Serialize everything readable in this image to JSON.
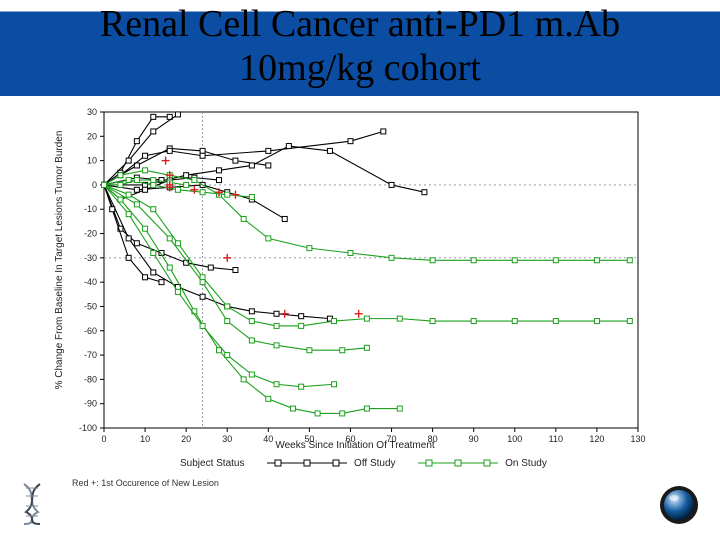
{
  "title": {
    "line1": "Renal Cell Cancer anti-PD1 m.Ab",
    "line2": "10mg/kg cohort",
    "fontsize": 38,
    "color_top": "#000000",
    "bar_color": "#0b4da2"
  },
  "chart": {
    "type": "line",
    "xlim": [
      0,
      130
    ],
    "ylim": [
      -100,
      30
    ],
    "xtick_step": 10,
    "ytick_step": 10,
    "xlabel": "Weeks Since Initiation Of Treatment",
    "ylabel": "% Change From Baseline In Target Lesions Tumor Burden",
    "axis_color": "#000000",
    "bg_color": "#ffffff",
    "grid_color": "#9aa6b2",
    "grid_dash": "3 3",
    "ref_lines": [
      {
        "y": 0,
        "label": "",
        "dash": "2 3",
        "color": "#8a8f96"
      },
      {
        "y": -30,
        "label": "",
        "dash": "2 3",
        "color": "#8a8f96"
      }
    ],
    "vertical_ref": {
      "x": 24,
      "dash": "2 2",
      "color": "#8a8f96"
    },
    "marker": {
      "shape": "square",
      "size": 5
    },
    "line_width": 1.1,
    "tick_fontsize": 9,
    "label_fontsize": 10,
    "series_off_study": {
      "color": "#000000",
      "fill": "#ffffff",
      "lines": [
        [
          [
            0,
            0
          ],
          [
            4,
            5
          ],
          [
            8,
            18
          ],
          [
            12,
            28
          ],
          [
            16,
            28
          ]
        ],
        [
          [
            0,
            0
          ],
          [
            6,
            10
          ],
          [
            12,
            22
          ],
          [
            18,
            29
          ]
        ],
        [
          [
            0,
            0
          ],
          [
            8,
            8
          ],
          [
            16,
            15
          ],
          [
            24,
            14
          ],
          [
            32,
            10
          ],
          [
            40,
            8
          ]
        ],
        [
          [
            0,
            0
          ],
          [
            4,
            4
          ],
          [
            10,
            12
          ],
          [
            16,
            14
          ],
          [
            24,
            12
          ],
          [
            40,
            14
          ],
          [
            60,
            18
          ],
          [
            68,
            22
          ]
        ],
        [
          [
            0,
            0
          ],
          [
            10,
            0
          ],
          [
            20,
            4
          ],
          [
            28,
            6
          ],
          [
            36,
            8
          ],
          [
            45,
            16
          ],
          [
            55,
            14
          ],
          [
            70,
            0
          ],
          [
            78,
            -3
          ]
        ],
        [
          [
            0,
            0
          ],
          [
            8,
            -2
          ],
          [
            16,
            -1
          ],
          [
            24,
            0
          ],
          [
            30,
            -3
          ],
          [
            36,
            -6
          ],
          [
            44,
            -14
          ]
        ],
        [
          [
            0,
            0
          ],
          [
            4,
            -6
          ],
          [
            10,
            -2
          ],
          [
            16,
            2
          ],
          [
            22,
            3
          ],
          [
            28,
            2
          ]
        ],
        [
          [
            0,
            0
          ],
          [
            4,
            -18
          ],
          [
            8,
            -24
          ],
          [
            14,
            -28
          ],
          [
            20,
            -32
          ],
          [
            26,
            -34
          ],
          [
            32,
            -35
          ]
        ],
        [
          [
            0,
            0
          ],
          [
            6,
            -22
          ],
          [
            12,
            -36
          ],
          [
            18,
            -42
          ],
          [
            24,
            -46
          ],
          [
            30,
            -50
          ],
          [
            36,
            -52
          ],
          [
            42,
            -53
          ],
          [
            48,
            -54
          ],
          [
            55,
            -55
          ]
        ],
        [
          [
            0,
            0
          ],
          [
            2,
            -10
          ],
          [
            6,
            -30
          ],
          [
            10,
            -38
          ],
          [
            14,
            -40
          ]
        ],
        [
          [
            0,
            0
          ],
          [
            8,
            3
          ],
          [
            14,
            2
          ]
        ]
      ]
    },
    "series_on_study": {
      "color": "#1aa01a",
      "fill": "#ffffff",
      "lines": [
        [
          [
            0,
            0
          ],
          [
            4,
            4
          ],
          [
            10,
            6
          ],
          [
            16,
            4
          ],
          [
            22,
            2
          ],
          [
            28,
            -4
          ],
          [
            34,
            -14
          ],
          [
            40,
            -22
          ],
          [
            50,
            -26
          ],
          [
            60,
            -28
          ],
          [
            70,
            -30
          ],
          [
            80,
            -31
          ],
          [
            90,
            -31
          ],
          [
            100,
            -31
          ],
          [
            110,
            -31
          ],
          [
            120,
            -31
          ],
          [
            128,
            -31
          ]
        ],
        [
          [
            0,
            0
          ],
          [
            6,
            -4
          ],
          [
            12,
            -10
          ],
          [
            18,
            -24
          ],
          [
            24,
            -38
          ],
          [
            30,
            -50
          ],
          [
            36,
            -56
          ],
          [
            42,
            -58
          ],
          [
            48,
            -58
          ],
          [
            56,
            -56
          ],
          [
            64,
            -55
          ],
          [
            72,
            -55
          ],
          [
            80,
            -56
          ],
          [
            90,
            -56
          ],
          [
            100,
            -56
          ],
          [
            110,
            -56
          ],
          [
            120,
            -56
          ],
          [
            128,
            -56
          ]
        ],
        [
          [
            0,
            0
          ],
          [
            8,
            -8
          ],
          [
            16,
            -22
          ],
          [
            24,
            -40
          ],
          [
            30,
            -56
          ],
          [
            36,
            -64
          ],
          [
            42,
            -66
          ],
          [
            50,
            -68
          ],
          [
            58,
            -68
          ],
          [
            64,
            -67
          ]
        ],
        [
          [
            0,
            0
          ],
          [
            4,
            -6
          ],
          [
            10,
            -18
          ],
          [
            16,
            -34
          ],
          [
            22,
            -52
          ],
          [
            28,
            -68
          ],
          [
            34,
            -80
          ],
          [
            40,
            -88
          ],
          [
            46,
            -92
          ],
          [
            52,
            -94
          ],
          [
            58,
            -94
          ],
          [
            64,
            -92
          ],
          [
            72,
            -92
          ]
        ],
        [
          [
            0,
            0
          ],
          [
            6,
            -12
          ],
          [
            12,
            -28
          ],
          [
            18,
            -44
          ],
          [
            24,
            -58
          ],
          [
            30,
            -70
          ],
          [
            36,
            -78
          ],
          [
            42,
            -82
          ],
          [
            48,
            -83
          ],
          [
            56,
            -82
          ]
        ],
        [
          [
            0,
            0
          ],
          [
            6,
            2
          ],
          [
            12,
            0
          ],
          [
            18,
            -2
          ],
          [
            24,
            -3
          ],
          [
            30,
            -4
          ],
          [
            36,
            -5
          ]
        ],
        [
          [
            0,
            0
          ],
          [
            4,
            0
          ],
          [
            8,
            2
          ],
          [
            12,
            2
          ],
          [
            16,
            1
          ],
          [
            20,
            0
          ]
        ]
      ]
    },
    "new_lesion_markers": {
      "color": "#d81e1e",
      "points": [
        [
          15,
          10
        ],
        [
          16,
          4
        ],
        [
          16,
          0
        ],
        [
          16,
          -1
        ],
        [
          22,
          -2
        ],
        [
          28,
          -3
        ],
        [
          30,
          -30
        ],
        [
          32,
          -4
        ],
        [
          44,
          -53
        ],
        [
          62,
          -53
        ]
      ]
    },
    "legend": {
      "label": "Subject Status",
      "items": [
        {
          "name": "Off Study",
          "color": "#000000"
        },
        {
          "name": "On Study",
          "color": "#1aa01a"
        }
      ]
    },
    "footnote": "Red +: 1st Occurence of New Lesion"
  },
  "icons": {
    "left": "dna-icon",
    "right": "globe-icon"
  }
}
